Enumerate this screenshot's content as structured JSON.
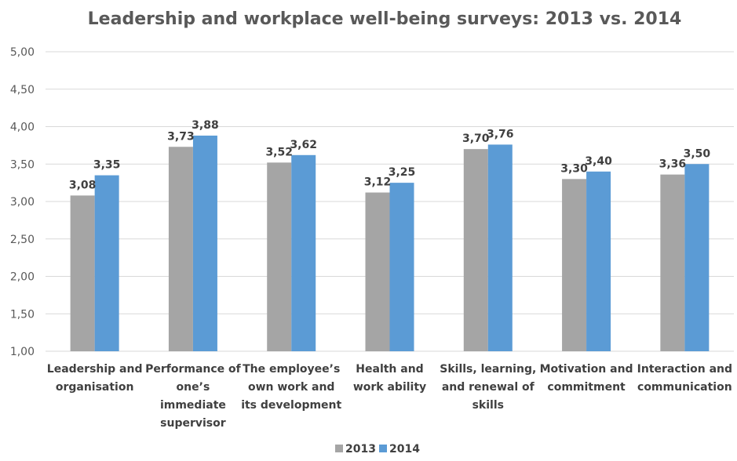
{
  "chart_data": {
    "type": "bar",
    "title": "Leadership and workplace well-being surveys: 2013 vs. 2014",
    "xlabel": "",
    "ylabel": "",
    "ylim": [
      1.0,
      5.0
    ],
    "yticks": [
      1.0,
      1.5,
      2.0,
      2.5,
      3.0,
      3.5,
      4.0,
      4.5,
      5.0
    ],
    "ytick_labels": [
      "1,00",
      "1,50",
      "2,00",
      "2,50",
      "3,00",
      "3,50",
      "4,00",
      "4,50",
      "5,00"
    ],
    "grid": true,
    "legend_position": "bottom",
    "categories": [
      [
        "Leadership and",
        "organisation"
      ],
      [
        "Performance of",
        "one’s",
        "immediate",
        "supervisor"
      ],
      [
        "The employee’s",
        "own work and",
        "its development"
      ],
      [
        "Health and",
        "work ability"
      ],
      [
        "Skills, learning,",
        "and renewal of",
        "skills"
      ],
      [
        "Motivation and",
        "commitment"
      ],
      [
        "Interaction and",
        "communication"
      ]
    ],
    "series": [
      {
        "name": "2013",
        "color": "#a5a5a5",
        "values": [
          3.08,
          3.73,
          3.52,
          3.12,
          3.7,
          3.3,
          3.36
        ],
        "labels": [
          "3,08",
          "3,73",
          "3,52",
          "3,12",
          "3,70",
          "3,30",
          "3,36"
        ]
      },
      {
        "name": "2014",
        "color": "#5b9bd5",
        "values": [
          3.35,
          3.88,
          3.62,
          3.25,
          3.76,
          3.4,
          3.5
        ],
        "labels": [
          "3,35",
          "3,88",
          "3,62",
          "3,25",
          "3,76",
          "3,40",
          "3,50"
        ]
      }
    ]
  }
}
